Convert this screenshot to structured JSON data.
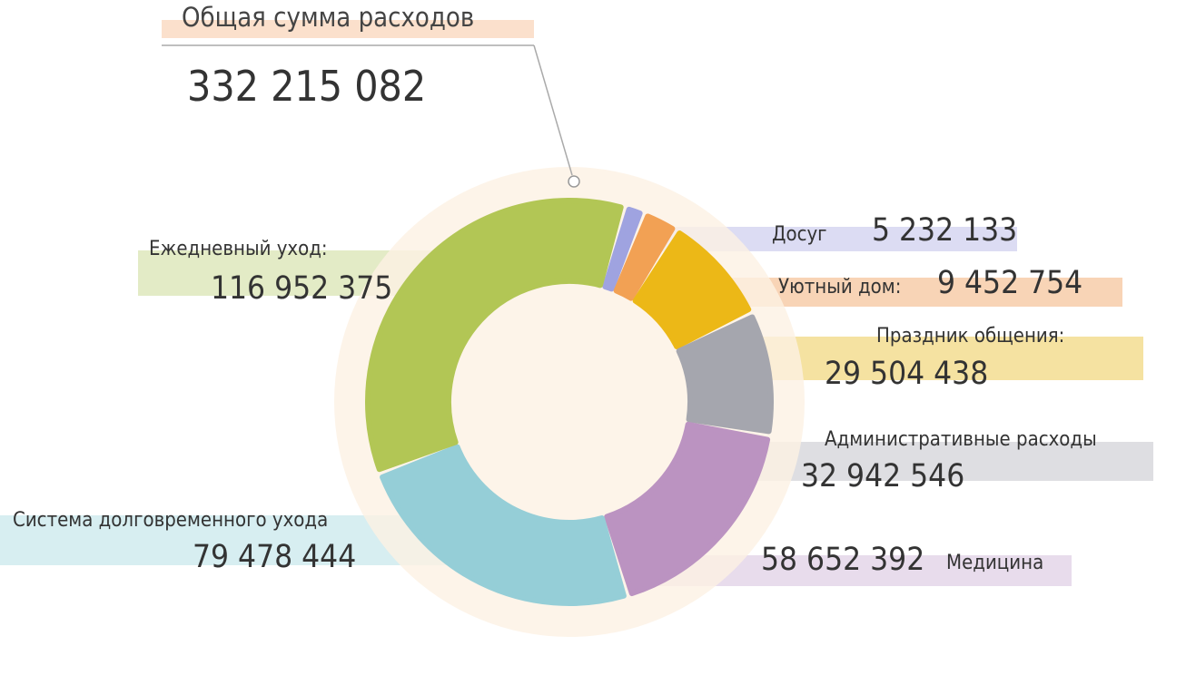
{
  "header": {
    "title": "Общая сумма расходов",
    "total": "332 215 082"
  },
  "chart_data": {
    "type": "pie",
    "total": 332215082,
    "slices": [
      {
        "label": "Досуг",
        "value": 5232133,
        "display": "5 232 133",
        "color": "#9fa3e0",
        "band_color": "#dcdcf3"
      },
      {
        "label": "Уютный дом:",
        "value": 9452754,
        "display": "9 452 754",
        "color": "#f2a154",
        "band_color": "#f8d4b6"
      },
      {
        "label": "Праздник общения:",
        "value": 29504438,
        "display": "29 504 438",
        "color": "#ecb817",
        "band_color": "#f5e2a1"
      },
      {
        "label": "Административные расходы",
        "value": 32942546,
        "display": "32 942 546",
        "color": "#a5a6ae",
        "band_color": "#dedee2"
      },
      {
        "label": "Медицина",
        "value": 58652392,
        "display": "58 652 392",
        "color": "#bb93c1",
        "band_color": "#e8dcec"
      },
      {
        "label": "Система долговременного ухода",
        "value": 79478444,
        "display": "79 478 444",
        "color": "#95ced7",
        "band_color": "#d7eef1"
      },
      {
        "label": "Ежедневный уход:",
        "value": 116952375,
        "display": "116 952 375",
        "color": "#b2c655",
        "band_color": "#e3ebc6"
      }
    ]
  }
}
